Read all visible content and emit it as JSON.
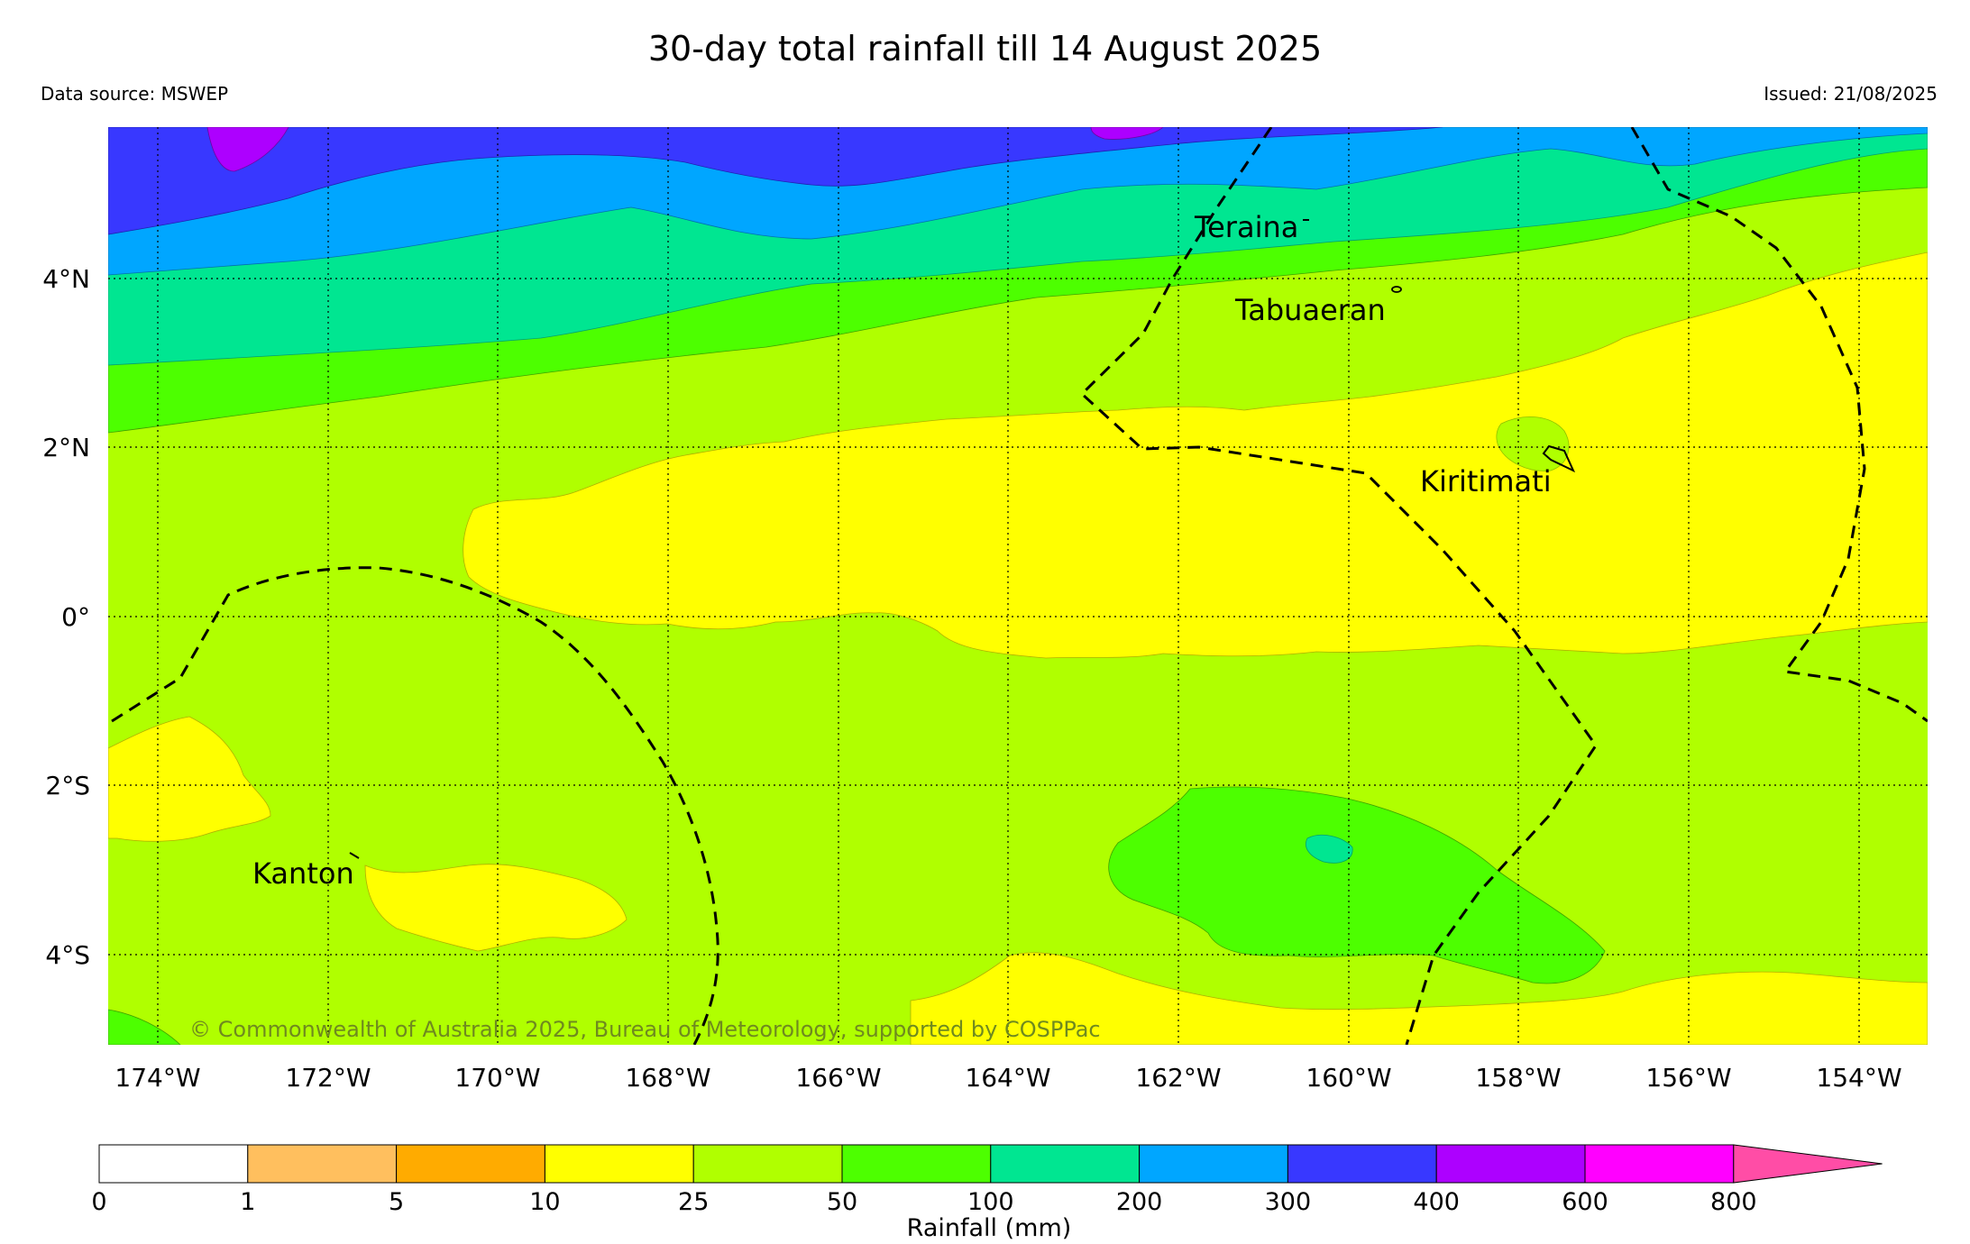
{
  "title": "30-day total rainfall till 14 August 2025",
  "data_source": "Data source: MSWEP",
  "issued": "Issued: 21/08/2025",
  "copyright": "© Commonwealth of Australia 2025, Bureau of Meteorology, supported by COSPPac",
  "map": {
    "lon_ticks": [
      "174°W",
      "172°W",
      "170°W",
      "168°W",
      "166°W",
      "164°W",
      "162°W",
      "160°W",
      "158°W",
      "156°W",
      "154°W"
    ],
    "lat_ticks": [
      "4°N",
      "2°N",
      "0°",
      "2°S",
      "4°S"
    ],
    "places": [
      {
        "name": "Teraina"
      },
      {
        "name": "Tabuaeran"
      },
      {
        "name": "Kiritimati"
      },
      {
        "name": "Kanton"
      }
    ],
    "extent": {
      "lon": [
        -174.6,
        -153.0
      ],
      "lat": [
        -5.1,
        5.8
      ]
    }
  },
  "colorbar": {
    "label": "Rainfall (mm)",
    "bounds": [
      "0",
      "1",
      "5",
      "10",
      "25",
      "50",
      "100",
      "200",
      "300",
      "400",
      "600",
      "800"
    ],
    "colors": [
      "#ffffff",
      "#ffbf5e",
      "#ffab00",
      "#ffff00",
      "#b0ff00",
      "#4dff00",
      "#00e691",
      "#00a6ff",
      "#3838ff",
      "#ad00ff",
      "#ff00ff"
    ],
    "extend_color": "#ff4da6"
  }
}
